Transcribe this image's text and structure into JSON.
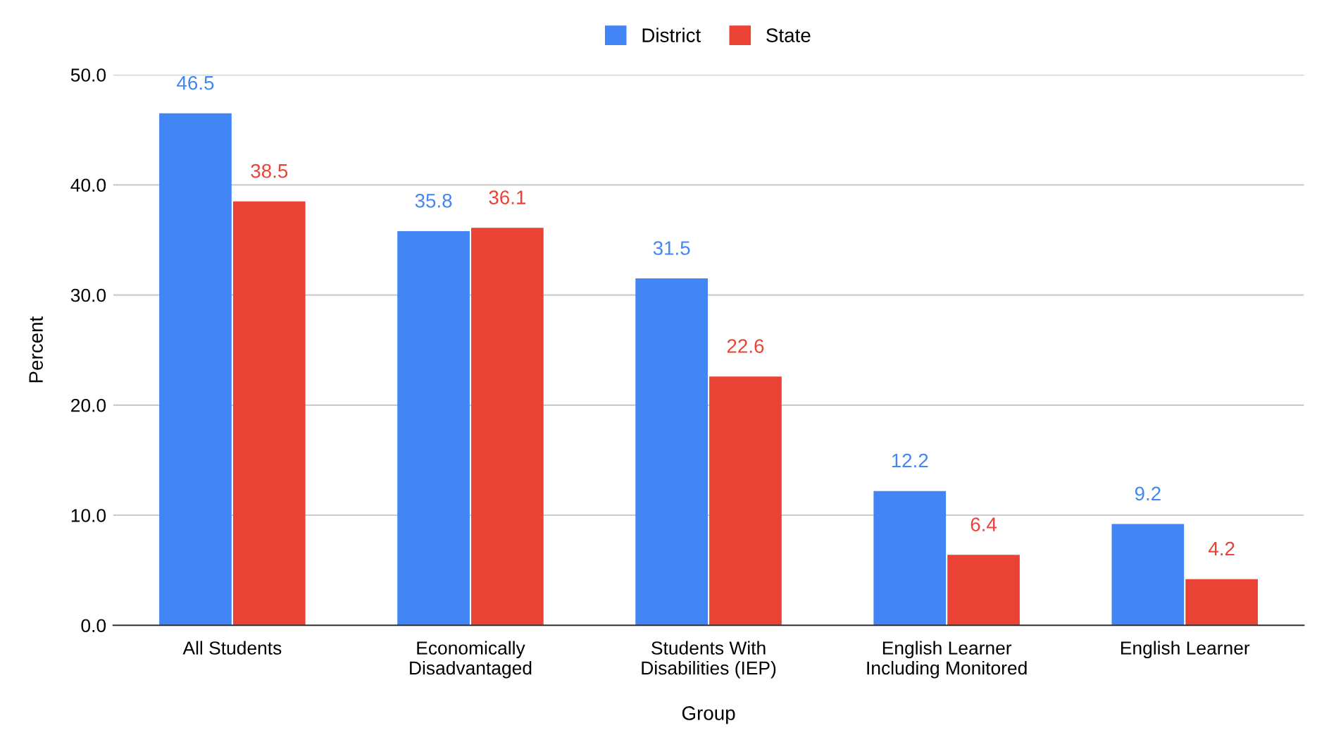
{
  "chart_data": {
    "type": "bar",
    "xlabel": "Group",
    "ylabel": "Percent",
    "categories": [
      "All Students",
      "Economically\nDisadvantaged",
      "Students With\nDisabilities (IEP)",
      "English Learner\nIncluding Monitored",
      "English Learner"
    ],
    "series": [
      {
        "name": "District",
        "color": "#4285f4",
        "values": [
          46.5,
          35.8,
          31.5,
          12.2,
          9.2
        ]
      },
      {
        "name": "State",
        "color": "#ea4335",
        "values": [
          38.5,
          36.1,
          22.6,
          6.4,
          4.2
        ]
      }
    ],
    "ylim": [
      0,
      50
    ],
    "yticks": [
      {
        "value": 0,
        "label": "0.0"
      },
      {
        "value": 10,
        "label": "10.0"
      },
      {
        "value": 20,
        "label": "20.0"
      },
      {
        "value": 30,
        "label": "30.0"
      },
      {
        "value": 40,
        "label": "40.0"
      },
      {
        "value": 50,
        "label": "50.0"
      }
    ],
    "grid": "y",
    "legend": "top",
    "data_labels": true
  }
}
